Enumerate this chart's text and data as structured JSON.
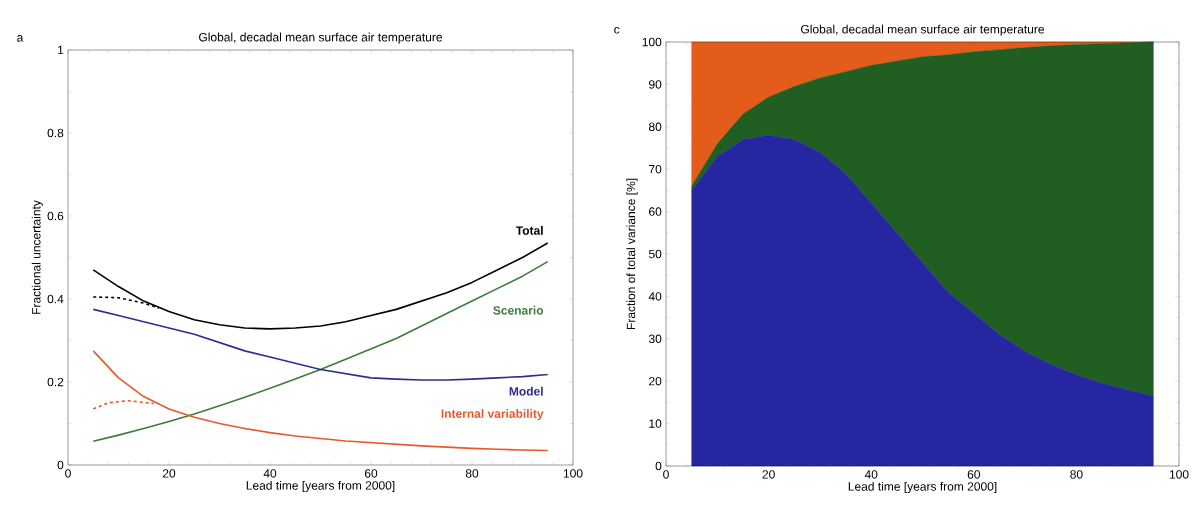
{
  "chart_data": [
    {
      "type": "line",
      "title": "Global, decadal mean surface air temperature",
      "xlabel": "Lead time  [years from 2000]",
      "ylabel": "Fractional uncertainty",
      "annotations": [
        "a"
      ],
      "xlim": [
        0,
        100
      ],
      "xticks": [
        0,
        20,
        40,
        60,
        80,
        100
      ],
      "ylim": [
        0,
        1
      ],
      "yticks": [
        0,
        0.2,
        0.4,
        0.6,
        0.8,
        1
      ],
      "series": [
        {
          "name": "Total",
          "color": "#000000",
          "x": [
            5,
            10,
            15,
            20,
            25,
            30,
            35,
            40,
            45,
            50,
            55,
            60,
            65,
            70,
            75,
            80,
            85,
            90,
            95
          ],
          "values": [
            0.47,
            0.43,
            0.395,
            0.37,
            0.35,
            0.338,
            0.33,
            0.328,
            0.33,
            0.335,
            0.345,
            0.36,
            0.375,
            0.395,
            0.415,
            0.44,
            0.47,
            0.5,
            0.535
          ]
        },
        {
          "color": "#000000",
          "line_style": "dashed",
          "x": [
            5,
            10,
            15,
            18
          ],
          "values": [
            0.405,
            0.403,
            0.39,
            0.378
          ]
        },
        {
          "name": "Scenario",
          "color": "#3a7d3a",
          "x": [
            5,
            10,
            15,
            20,
            25,
            30,
            35,
            40,
            45,
            50,
            55,
            60,
            65,
            70,
            75,
            80,
            85,
            90,
            95
          ],
          "values": [
            0.057,
            0.072,
            0.088,
            0.105,
            0.123,
            0.143,
            0.163,
            0.185,
            0.207,
            0.23,
            0.255,
            0.28,
            0.305,
            0.335,
            0.365,
            0.395,
            0.425,
            0.455,
            0.49
          ]
        },
        {
          "name": "Model",
          "color": "#2e2e8a",
          "x": [
            5,
            10,
            15,
            20,
            25,
            30,
            35,
            40,
            45,
            50,
            55,
            60,
            65,
            70,
            75,
            80,
            85,
            90,
            95
          ],
          "values": [
            0.375,
            0.36,
            0.345,
            0.33,
            0.315,
            0.295,
            0.275,
            0.26,
            0.245,
            0.23,
            0.22,
            0.21,
            0.207,
            0.205,
            0.205,
            0.207,
            0.21,
            0.213,
            0.218
          ]
        },
        {
          "name": "Internal variability",
          "color": "#e8582a",
          "x": [
            5,
            10,
            15,
            20,
            25,
            30,
            35,
            40,
            45,
            50,
            55,
            60,
            65,
            70,
            75,
            80,
            85,
            90,
            95
          ],
          "values": [
            0.275,
            0.21,
            0.165,
            0.135,
            0.115,
            0.1,
            0.088,
            0.078,
            0.07,
            0.064,
            0.058,
            0.054,
            0.05,
            0.046,
            0.043,
            0.04,
            0.038,
            0.036,
            0.035
          ]
        },
        {
          "color": "#e8582a",
          "line_style": "dashed",
          "x": [
            5,
            8,
            12,
            17
          ],
          "values": [
            0.135,
            0.15,
            0.155,
            0.148
          ]
        }
      ]
    },
    {
      "type": "area",
      "stacked": true,
      "title": "Global, decadal mean surface air temperature",
      "xlabel": "Lead time  [years from 2000]",
      "ylabel": "Fraction of total variance  [%]",
      "annotations": [
        "c"
      ],
      "xlim": [
        0,
        100
      ],
      "xticks": [
        0,
        20,
        40,
        60,
        80,
        100
      ],
      "ylim": [
        0,
        100
      ],
      "yticks": [
        0,
        10,
        20,
        30,
        40,
        50,
        60,
        70,
        80,
        90,
        100
      ],
      "x": [
        5,
        10,
        15,
        20,
        25,
        30,
        35,
        40,
        45,
        50,
        55,
        60,
        65,
        70,
        75,
        80,
        85,
        90,
        95
      ],
      "series": [
        {
          "color": "#2626a0",
          "values": [
            65,
            73,
            77,
            78,
            77,
            74,
            69,
            62,
            55,
            48,
            41,
            36,
            31,
            27,
            24,
            21.5,
            19.5,
            18,
            16.5
          ]
        },
        {
          "color": "#205e22",
          "values": [
            1,
            3,
            6,
            9,
            12.5,
            17.5,
            24,
            32.5,
            40.5,
            48.5,
            56,
            61.7,
            67.2,
            71.7,
            75.1,
            77.9,
            80.1,
            81.8,
            83.5
          ]
        },
        {
          "color": "#e45c1c",
          "values": [
            34,
            24,
            17,
            13,
            10.5,
            8.5,
            7,
            5.5,
            4.5,
            3.5,
            3,
            2.3,
            1.8,
            1.3,
            0.9,
            0.6,
            0.4,
            0.2,
            0
          ]
        }
      ]
    }
  ]
}
